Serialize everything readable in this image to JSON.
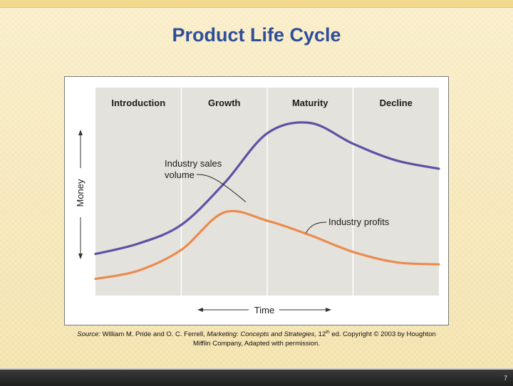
{
  "slide": {
    "title": "Product Life Cycle",
    "page_number": "7"
  },
  "caption": {
    "source_label": "Source:",
    "part1": " William M. Pride and O. C. Ferrell, ",
    "book_title": "Marketing: Concepts and Strategies",
    "part2": ", 12",
    "superscript": "th",
    "part3": " ed. Copyright © 2003 by Houghton",
    "line2": "Mifflin Company, Adapted with permission."
  },
  "chart_data": {
    "type": "line",
    "xlabel": "Time",
    "ylabel": "Money",
    "stages": [
      "Introduction",
      "Growth",
      "Maturity",
      "Decline"
    ],
    "x": [
      0,
      0.5,
      1,
      1.5,
      2,
      2.5,
      3,
      3.5,
      4
    ],
    "xlim": [
      0,
      4
    ],
    "ylim": [
      0,
      100
    ],
    "grid": false,
    "series": [
      {
        "name": "Industry sales volume",
        "label_lines": [
          "Industry sales",
          "volume"
        ],
        "color": "#5b52a3",
        "values": [
          20,
          25,
          34,
          54,
          78,
          83,
          73,
          65,
          61
        ]
      },
      {
        "name": "Industry profits",
        "label_lines": [
          "Industry profits"
        ],
        "color": "#ea8b4e",
        "values": [
          8,
          12,
          22,
          40,
          36,
          29,
          21,
          16,
          15
        ]
      }
    ],
    "colors": {
      "plot_background": "#e4e2dc",
      "stage_divider": "#ffffff",
      "axis": "#333333"
    }
  }
}
